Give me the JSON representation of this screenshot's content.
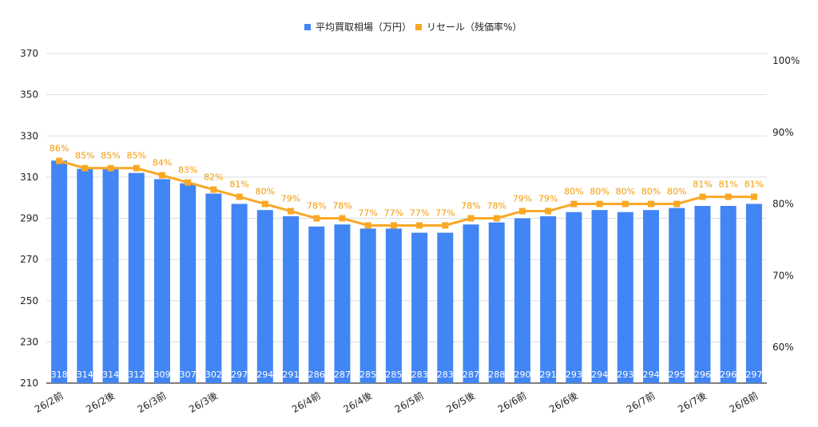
{
  "chart_data": {
    "type": "bar",
    "categories": [
      "26/2前",
      "",
      "26/2後",
      "",
      "26/3前",
      "",
      "26/3後",
      "",
      "",
      "",
      "26/4前",
      "",
      "26/4後",
      "",
      "26/5前",
      "",
      "26/5後",
      "",
      "26/6前",
      "",
      "26/6後",
      "",
      "",
      "26/7前",
      "",
      "26/7後",
      "",
      "26/8前"
    ],
    "series": [
      {
        "name": "平均買取相場（万円）",
        "type": "bar",
        "axis": "left",
        "color": "#4285f4",
        "values": [
          318,
          314,
          314,
          312,
          309,
          307,
          302,
          297,
          294,
          291,
          286,
          287,
          285,
          285,
          283,
          283,
          287,
          288,
          290,
          291,
          293,
          294,
          293,
          294,
          295,
          296,
          296,
          297
        ]
      },
      {
        "name": "リセール（残価率%）",
        "type": "line",
        "axis": "right",
        "color": "#f9a825",
        "values": [
          86,
          85,
          85,
          85,
          84,
          83,
          82,
          81,
          80,
          79,
          78,
          78,
          77,
          77,
          77,
          77,
          78,
          78,
          79,
          79,
          80,
          80,
          80,
          80,
          80,
          81,
          81,
          81
        ]
      }
    ],
    "left_axis": {
      "min": 210,
      "max": 370,
      "ticks": [
        210,
        230,
        250,
        270,
        290,
        310,
        330,
        350,
        370
      ]
    },
    "right_axis": {
      "min": 55,
      "max": 101,
      "ticks": [
        60,
        70,
        80,
        90,
        100
      ],
      "tick_labels": [
        "60%",
        "70%",
        "80%",
        "90%",
        "100%"
      ]
    },
    "bar_labels": [
      "318",
      "314",
      "314",
      "312",
      "309",
      "307",
      "302",
      "297",
      "294",
      "291",
      "286",
      "287",
      "285",
      "285",
      "283",
      "283",
      "287",
      "288",
      "290",
      "291",
      "293",
      "294",
      "293",
      "294",
      "295",
      "296",
      "296",
      "297"
    ],
    "rate_labels": [
      "86%",
      "85%",
      "85%",
      "85%",
      "84%",
      "83%",
      "82%",
      "81%",
      "80%",
      "79%",
      "78%",
      "78%",
      "77%",
      "77%",
      "77%",
      "77%",
      "78%",
      "78%",
      "79%",
      "79%",
      "80%",
      "80%",
      "80%",
      "80%",
      "80%",
      "81%",
      "81%",
      "81%"
    ],
    "legend": {
      "placement": "top-center",
      "entries": [
        {
          "label": "平均買取相場（万円）",
          "color": "#4285f4"
        },
        {
          "label": "リセール（残価率%）",
          "color": "#f9a825"
        }
      ]
    },
    "grid": true
  }
}
